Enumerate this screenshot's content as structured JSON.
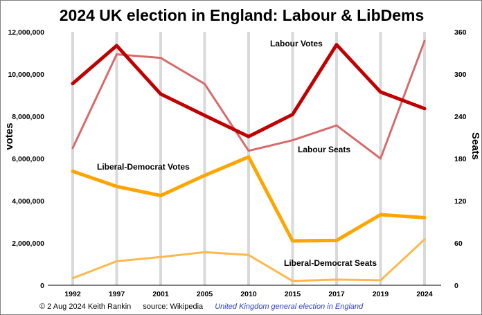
{
  "chart_data": {
    "type": "line",
    "title": "2024 UK election in England: Labour & LibDems",
    "x": [
      "1992",
      "1997",
      "2001",
      "2005",
      "2010",
      "2015",
      "2017",
      "2019",
      "2024"
    ],
    "ylabel": "votes",
    "ylabel_right": "Seats",
    "ylim": [
      0,
      12000000
    ],
    "ylim_right": [
      0,
      360
    ],
    "yticks": [
      "0",
      "2,000,000",
      "4,000,000",
      "6,000,000",
      "8,000,000",
      "10,000,000",
      "12,000,000"
    ],
    "yticks_right": [
      "0",
      "60",
      "120",
      "180",
      "240",
      "300",
      "360"
    ],
    "grid": "vertical",
    "series": [
      {
        "name": "Labour Votes",
        "axis": "left",
        "color": "#c00000",
        "values": [
          9551910,
          11347882,
          9056824,
          8043461,
          7042398,
          8087684,
          11389862,
          9152034,
          8367600
        ]
      },
      {
        "name": "Labour Seats",
        "axis": "right",
        "color": "#d96a6a",
        "values": [
          195,
          328,
          323,
          286,
          191,
          206,
          227,
          180,
          347
        ]
      },
      {
        "name": "Liberal-Democrat Votes",
        "axis": "left",
        "color": "#ffa500",
        "values": [
          5398293,
          4677565,
          4246853,
          5201286,
          6076189,
          2098404,
          2121810,
          3340835,
          3199500
        ]
      },
      {
        "name": "Liberal-Democrat Seats",
        "axis": "right",
        "color": "#ffb84d",
        "values": [
          10,
          34,
          40,
          47,
          43,
          6,
          8,
          7,
          65
        ]
      }
    ]
  },
  "footer": {
    "credit": "© 2 Aug 2024 Keith Rankin",
    "source": "source: Wikipedia",
    "link": "United Kingdom general election in England"
  }
}
